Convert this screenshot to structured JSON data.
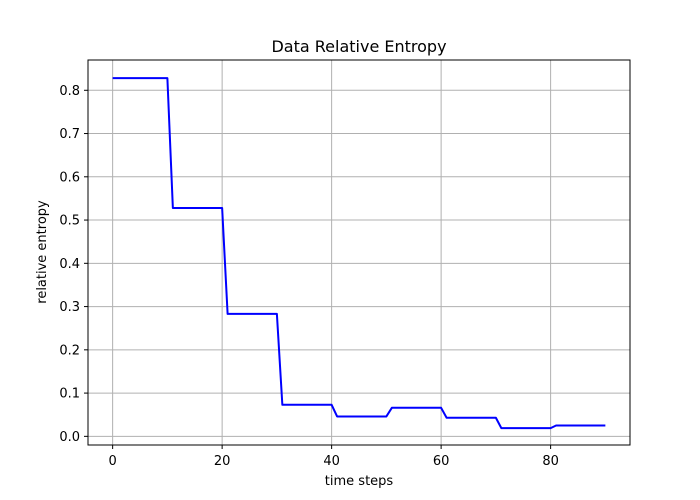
{
  "chart_data": {
    "type": "line",
    "title": "Data Relative Entropy",
    "xlabel": "time steps",
    "ylabel": "relative entropy",
    "xlim": [
      -4.5,
      94.5
    ],
    "ylim": [
      -0.02,
      0.87
    ],
    "xticks": [
      0,
      20,
      40,
      60,
      80
    ],
    "yticks": [
      0.0,
      0.1,
      0.2,
      0.3,
      0.4,
      0.5,
      0.6,
      0.7,
      0.8
    ],
    "xtick_labels": [
      "0",
      "20",
      "40",
      "60",
      "80"
    ],
    "ytick_labels": [
      "0.0",
      "0.1",
      "0.2",
      "0.3",
      "0.4",
      "0.5",
      "0.6",
      "0.7",
      "0.8"
    ],
    "grid": true,
    "series": [
      {
        "color": "#0000ff",
        "x": [
          0,
          10,
          11,
          20,
          21,
          30,
          31,
          40,
          41,
          50,
          51,
          60,
          61,
          70,
          71,
          80,
          81,
          90
        ],
        "y": [
          0.828,
          0.828,
          0.528,
          0.528,
          0.283,
          0.283,
          0.073,
          0.073,
          0.046,
          0.046,
          0.066,
          0.066,
          0.043,
          0.043,
          0.019,
          0.019,
          0.025,
          0.025
        ]
      }
    ]
  }
}
